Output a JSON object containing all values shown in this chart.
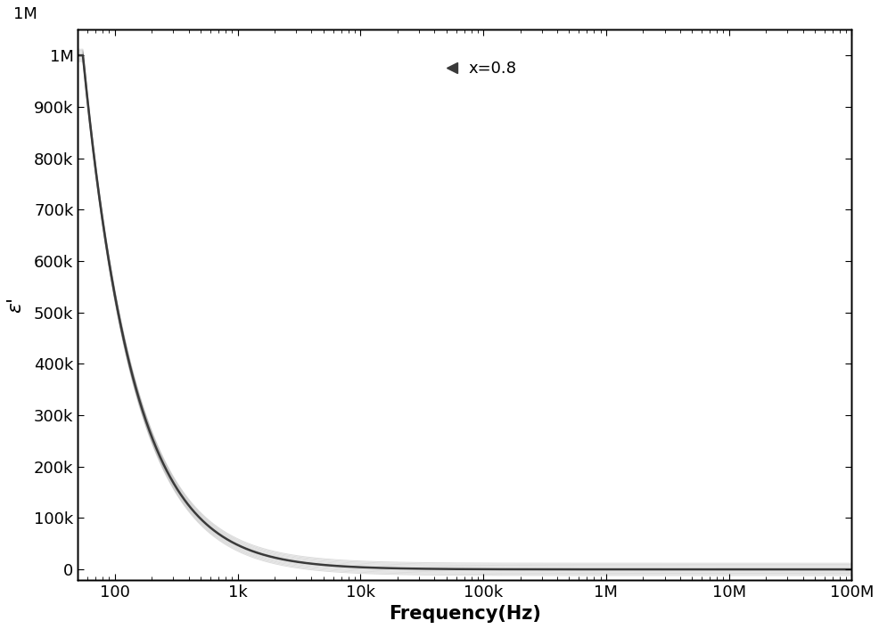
{
  "title": "",
  "xlabel": "Frequency(Hz)",
  "ylabel": "ε'",
  "x_min": 50,
  "x_max": 100000000.0,
  "y_min": -20000,
  "y_max": 1050000,
  "legend_label": "x=0.8",
  "line_color": "#3a3a3a",
  "line_width": 2.5,
  "background_color": "#ffffff",
  "ytick_values": [
    0,
    100000,
    200000,
    300000,
    400000,
    500000,
    600000,
    700000,
    800000,
    900000,
    1000000
  ],
  "ytick_labels": [
    "0",
    "100k",
    "200k",
    "300k",
    "400k",
    "500k",
    "600k",
    "700k",
    "800k",
    "900k",
    "1M"
  ],
  "xtick_values": [
    100,
    1000,
    10000,
    100000,
    1000000,
    10000000,
    100000000
  ],
  "xtick_labels": [
    "100",
    "1k",
    "10k",
    "100k",
    "1M",
    "10M",
    "100M"
  ],
  "epsilon_s": 1000000.0,
  "epsilon_inf": 500.0,
  "f_start": 50,
  "f_end": 100000000.0,
  "power_n": 1.05,
  "f_scale": 55.0
}
